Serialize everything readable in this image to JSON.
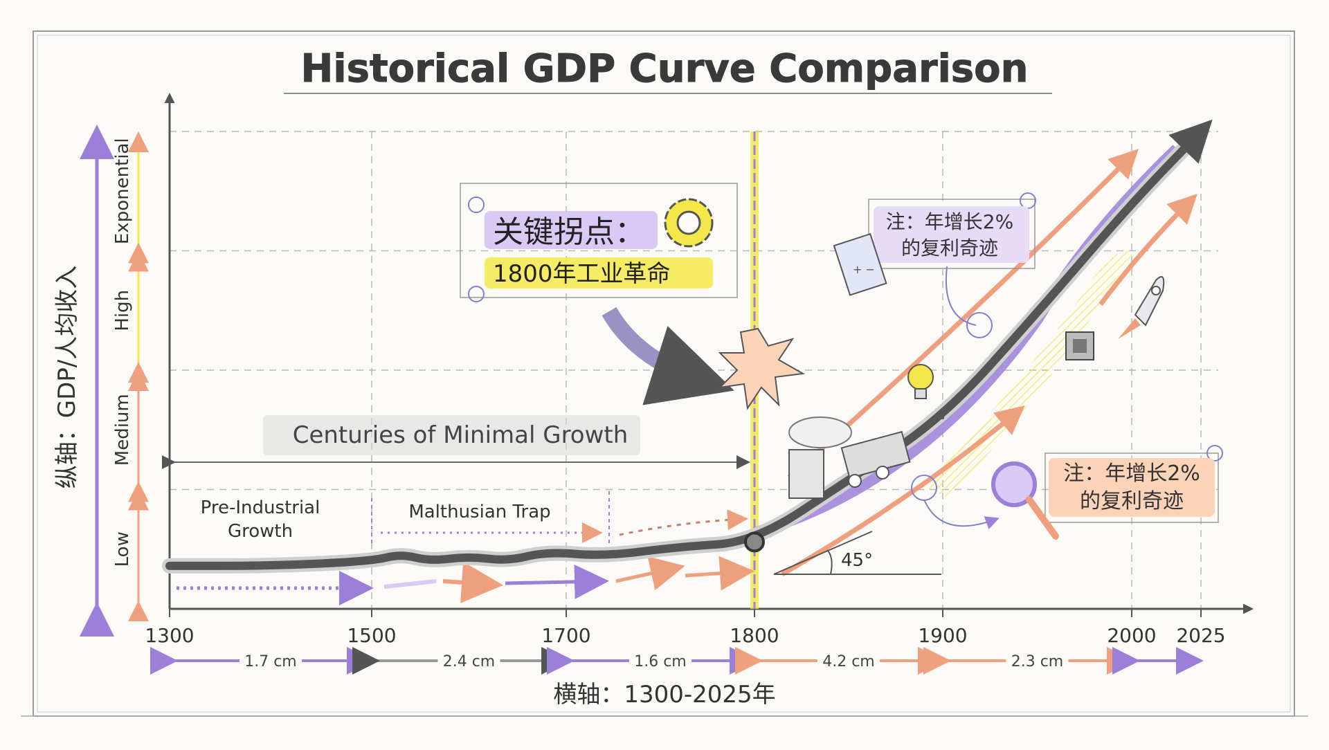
{
  "chart_data": {
    "type": "line",
    "title": "Historical GDP Curve Comparison",
    "xlabel": "横轴：1300-2025年",
    "ylabel": "纵轴：GDP/人均收入",
    "x_ticks": [
      1300,
      1500,
      1700,
      1800,
      1900,
      2000,
      2025
    ],
    "x_tick_labels": [
      "1300",
      "1500",
      "1700",
      "1800",
      "1900",
      "2000",
      "2025"
    ],
    "xlim": [
      1300,
      2025
    ],
    "ylim": [
      0,
      100
    ],
    "y_bands": [
      {
        "label": "Low",
        "from": 0,
        "to": 25
      },
      {
        "label": "Medium",
        "from": 25,
        "to": 50
      },
      {
        "label": "High",
        "from": 50,
        "to": 75
      },
      {
        "label": "Exponential",
        "from": 75,
        "to": 100
      }
    ],
    "series": [
      {
        "name": "GDP",
        "x": [
          1300,
          1400,
          1500,
          1530,
          1560,
          1600,
          1640,
          1680,
          1720,
          1760,
          1800,
          1850,
          1900,
          1950,
          2000,
          2025
        ],
        "y": [
          9,
          9,
          10,
          11.5,
          10,
          11,
          10,
          12,
          11,
          13,
          14,
          27,
          40,
          62,
          85,
          100
        ]
      }
    ],
    "segment_spacing": [
      {
        "from": 1300,
        "to": 1500,
        "label": "1.7 cm"
      },
      {
        "from": 1500,
        "to": 1700,
        "label": "2.4 cm"
      },
      {
        "from": 1700,
        "to": 1800,
        "label": "1.6 cm"
      },
      {
        "from": 1800,
        "to": 1900,
        "label": "4.2 cm"
      },
      {
        "from": 1900,
        "to": 2000,
        "label": "2.3 cm"
      }
    ],
    "annotations": {
      "turning_point_title": "关键拐点：",
      "turning_point_sub": "1800年工业革命",
      "turning_point_year": 1800,
      "minimal_growth": "Centuries of Minimal Growth",
      "pre_industrial_line1": "Pre-Industrial",
      "pre_industrial_line2": "Growth",
      "malthusian": "Malthusian Trap",
      "note1_line1": "注：年增长2%",
      "note1_line2": "的复利奇迹",
      "note2_line1": "注：年增长2%",
      "note2_line2": "的复利奇迹",
      "angle_label": "45°"
    }
  },
  "colors": {
    "purple": "#9b7fd9",
    "lavender": "#d9c9f5",
    "yellow": "#f3e74a",
    "peach": "#ee9f7e",
    "ink": "#444444",
    "grid": "#b8b8b8"
  }
}
